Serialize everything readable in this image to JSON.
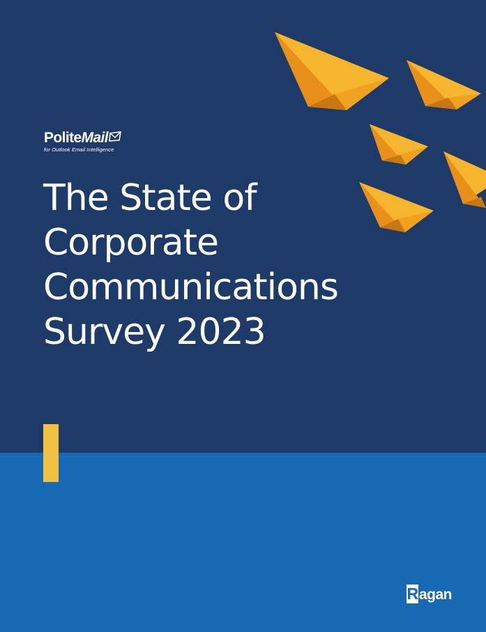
{
  "cover": {
    "colors": {
      "top_background": "#1e3a69",
      "bottom_background": "#1769b3",
      "accent_bar": "#f2c144",
      "plane_orange": "#f0a21e",
      "plane_shadow": "#d9820f"
    }
  },
  "logo": {
    "name_part1": "Polite",
    "name_part2": "Mail",
    "tagline": "for Outlook Email Intelligence",
    "icon": "envelope-flag-icon"
  },
  "title": {
    "line1": "The State of",
    "line2": "Corporate",
    "line3": "Communications",
    "line4": "Survey 2023"
  },
  "publisher": {
    "initial": "R",
    "rest": "agan"
  },
  "decoration": {
    "icon": "paper-plane-icon",
    "count": 5
  }
}
